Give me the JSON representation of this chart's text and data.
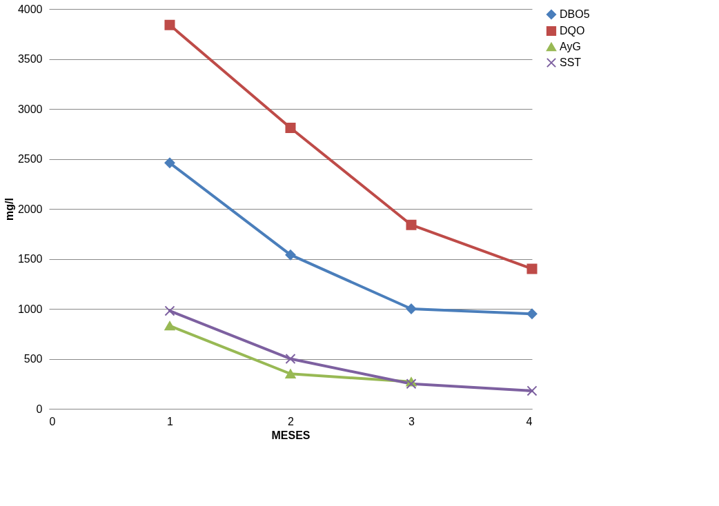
{
  "chart_data": {
    "type": "line",
    "xlabel": "MESES",
    "ylabel": "mg/l",
    "x": [
      1,
      2,
      3,
      4
    ],
    "series": [
      {
        "name": "DBO5",
        "color": "#4a7ebb",
        "marker": "diamond",
        "values": [
          2460,
          1540,
          1000,
          950
        ]
      },
      {
        "name": "DQO",
        "color": "#be4b48",
        "marker": "square",
        "values": [
          3840,
          2810,
          1840,
          1400
        ]
      },
      {
        "name": "AyG",
        "color": "#98b954",
        "marker": "triangle",
        "values": [
          830,
          350,
          270,
          null
        ]
      },
      {
        "name": "SST",
        "color": "#7d60a0",
        "marker": "cross",
        "values": [
          980,
          500,
          250,
          180
        ]
      }
    ],
    "xlim": [
      0,
      4
    ],
    "xticks": [
      0,
      1,
      2,
      3,
      4
    ],
    "ylim": [
      0,
      4000
    ],
    "yticks": [
      0,
      500,
      1000,
      1500,
      2000,
      2500,
      3000,
      3500,
      4000
    ],
    "grid": "y",
    "legend": "right",
    "line_style": "solid"
  }
}
